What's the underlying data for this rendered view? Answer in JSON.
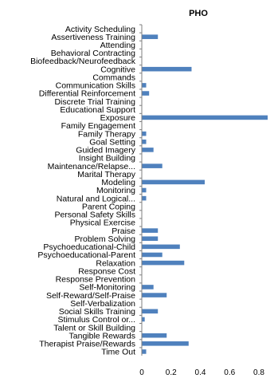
{
  "chart_data": {
    "type": "bar",
    "orientation": "horizontal",
    "title": "PHO",
    "xlabel": "",
    "ylabel": "",
    "xlim": [
      0,
      0.9
    ],
    "x_ticks": [
      "0",
      "0.2",
      "0.4",
      "0.6",
      "0.8"
    ],
    "grid": false,
    "bar_color": "#4f81bd",
    "categories": [
      "Activity Scheduling",
      "Assertiveness Training",
      "Attending",
      "Behavioral Contracting",
      "Biofeedback/Neurofeedback",
      "Cognitive",
      "Commands",
      "Communication Skills",
      "Differential Reinforcement",
      "Discrete Trial Training",
      "Educational Support",
      "Exposure",
      "Family Engagement",
      "Family Therapy",
      "Goal Setting",
      "Guided Imagery",
      "Insight Building",
      "Maintenance/Relapse...",
      "Marital Therapy",
      "Modeling",
      "Monitoring",
      "Natural and Logical...",
      "Parent Coping",
      "Personal Safety Skills",
      "Physical Exercise",
      "Praise",
      "Problem Solving",
      "Psychoeducational-Child",
      "Psychoeducational-Parent",
      "Relaxation",
      "Response Cost",
      "Response Prevention",
      "Self-Monitoring",
      "Self-Reward/Self-Praise",
      "Self-Verbalization",
      "Social Skills Training",
      "Stimulus Control or...",
      "Talent or Skill Building",
      "Tangible Rewards",
      "Therapist Praise/Rewards",
      "Time Out"
    ],
    "values": [
      0,
      0.11,
      0,
      0,
      0,
      0.34,
      0,
      0.03,
      0.05,
      0,
      0,
      0.86,
      0,
      0.03,
      0.03,
      0.08,
      0,
      0.14,
      0,
      0.43,
      0.03,
      0.03,
      0,
      0,
      0,
      0.11,
      0.11,
      0.26,
      0.14,
      0.29,
      0,
      0,
      0.08,
      0.17,
      0,
      0.11,
      0.02,
      0,
      0.17,
      0.32,
      0.03
    ]
  }
}
